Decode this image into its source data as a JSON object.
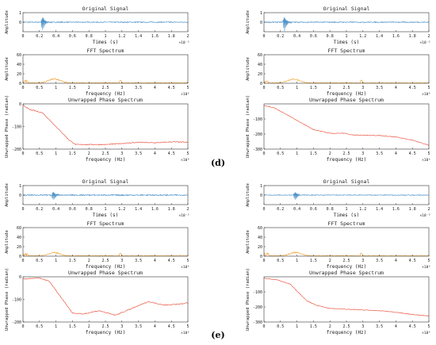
{
  "figure_labels": [
    "(d)",
    "(e)"
  ],
  "panel_common": {
    "signal_title": "Original Signal",
    "signal_ylabel": "Amplitude",
    "signal_xlabel": "Times (s)",
    "signal_xexp": "×10⁻³",
    "fft_title": "FFT Spectrum",
    "fft_ylabel": "Amplitude",
    "fft_xlabel": "frequency (Hz)",
    "fft_xexp": "×10⁶",
    "phase_title": "Unwrapped Phase Spectrum",
    "phase_ylabel": "Unwrapped Phase (radian)",
    "phase_xlabel": "frequency (Hz)",
    "phase_xexp": "×10⁶"
  },
  "colors": {
    "signal": "#4a90c8",
    "fft": "#f0a030",
    "phase": "#e8432e"
  },
  "chart_data": [
    {
      "panel": "d-left",
      "type": "line",
      "signal": {
        "title": "Original Signal",
        "xlabel": "Times (s)",
        "ylabel": "Amplitude",
        "xlim": [
          0,
          2
        ],
        "ylim": [
          -1,
          1
        ],
        "xticks": [
          0,
          0.2,
          0.4,
          0.6,
          0.8,
          1,
          1.2,
          1.4,
          1.6,
          1.8,
          2
        ],
        "yticks": [
          0,
          1
        ],
        "burst_center": 0.24,
        "burst_amplitude": 0.9,
        "noise": 0.05
      },
      "fft": {
        "title": "FFT Spectrum",
        "xlabel": "frequency (Hz)",
        "ylabel": "Amplitude",
        "xlim": [
          0,
          5
        ],
        "ylim": [
          0,
          60
        ],
        "yticks": [
          0,
          20,
          40,
          60
        ],
        "xticks": [
          0,
          0.5,
          1,
          1.5,
          2,
          2.5,
          3,
          3.5,
          4,
          4.5,
          5
        ],
        "peak_freq": 0.95,
        "peak_amp": 10
      },
      "phase": {
        "title": "Unwrapped Phase Spectrum",
        "xlabel": "frequency (Hz)",
        "ylabel": "Unwrapped Phase (radian)",
        "xlim": [
          0,
          5
        ],
        "ylim": [
          -200,
          0
        ],
        "yticks": [
          0,
          -100,
          -200
        ],
        "xticks": [
          0,
          0.5,
          1,
          1.5,
          2,
          2.5,
          3,
          3.5,
          4,
          4.5,
          5
        ],
        "x": [
          0,
          0.2,
          0.35,
          0.6,
          1.0,
          1.4,
          1.6,
          2.5,
          3.0,
          3.5,
          4.0,
          4.5,
          5.0
        ],
        "y": [
          -5,
          -25,
          -30,
          -40,
          -100,
          -160,
          -180,
          -180,
          -175,
          -170,
          -172,
          -168,
          -170
        ]
      }
    },
    {
      "panel": "d-right",
      "type": "line",
      "signal": {
        "title": "Original Signal",
        "xlabel": "Times (s)",
        "ylabel": "Amplitude",
        "xlim": [
          0,
          2
        ],
        "ylim": [
          -1,
          1
        ],
        "xticks": [
          0,
          0.2,
          0.4,
          0.6,
          0.8,
          1,
          1.2,
          1.4,
          1.6,
          1.8,
          2
        ],
        "yticks": [
          0,
          1
        ],
        "burst_center": 0.25,
        "burst_amplitude": 0.9,
        "noise": 0.05
      },
      "fft": {
        "title": "FFT Spectrum",
        "xlabel": "frequency (Hz)",
        "ylabel": "Amplitude",
        "xlim": [
          0,
          5
        ],
        "ylim": [
          0,
          60
        ],
        "yticks": [
          0,
          20,
          40,
          60
        ],
        "xticks": [
          0,
          0.5,
          1,
          1.5,
          2,
          2.5,
          3,
          3.5,
          4,
          4.5,
          5
        ],
        "peak_freq": 0.9,
        "peak_amp": 9
      },
      "phase": {
        "title": "Unwrapped Phase Spectrum",
        "xlabel": "frequency (Hz)",
        "ylabel": "Unwrapped Phase (radian)",
        "xlim": [
          0,
          5
        ],
        "ylim": [
          -300,
          0
        ],
        "yticks": [
          -100,
          -200,
          -300
        ],
        "x": [
          0,
          0.3,
          0.6,
          1.0,
          1.5,
          2.0,
          2.5,
          2.6,
          3.5,
          4.0,
          4.5,
          5.0
        ],
        "y": [
          -10,
          -25,
          -60,
          -110,
          -170,
          -195,
          -195,
          -205,
          -210,
          -220,
          -240,
          -275
        ],
        "xticks": [
          0,
          0.5,
          1,
          1.5,
          2,
          2.5,
          3,
          3.5,
          4,
          4.5,
          5
        ]
      }
    },
    {
      "panel": "e-left",
      "type": "line",
      "signal": {
        "title": "Original Signal",
        "xlabel": "Times (s)",
        "ylabel": "Amplitude",
        "xlim": [
          0,
          2
        ],
        "ylim": [
          -1,
          1
        ],
        "xticks": [
          0,
          0.2,
          0.4,
          0.6,
          0.8,
          1,
          1.2,
          1.4,
          1.6,
          1.8,
          2
        ],
        "yticks": [
          0,
          1
        ],
        "burst_center": 0.37,
        "burst_amplitude": 0.6,
        "noise": 0.06
      },
      "fft": {
        "title": "FFT Spectrum",
        "xlabel": "frequency (Hz)",
        "ylabel": "Amplitude",
        "xlim": [
          0,
          5
        ],
        "ylim": [
          0,
          60
        ],
        "yticks": [
          0,
          20,
          40,
          60
        ],
        "xticks": [
          0,
          0.5,
          1,
          1.5,
          2,
          2.5,
          3,
          3.5,
          4,
          4.5,
          5
        ],
        "peak_freq": 0.95,
        "peak_amp": 8
      },
      "phase": {
        "title": "Unwrapped Phase Spectrum",
        "xlabel": "frequency (Hz)",
        "ylabel": "Unwrapped Phase (radian)",
        "xlim": [
          0,
          5
        ],
        "ylim": [
          -200,
          0
        ],
        "yticks": [
          0,
          -100,
          -200
        ],
        "x": [
          0,
          0.5,
          0.8,
          1.5,
          1.8,
          2.3,
          2.8,
          3.3,
          3.8,
          4.3,
          4.8,
          5.0
        ],
        "y": [
          -10,
          -5,
          -20,
          -160,
          -165,
          -150,
          -170,
          -140,
          -110,
          -125,
          -120,
          -115
        ],
        "xticks": [
          0,
          0.5,
          1,
          1.5,
          2,
          2.5,
          3,
          3.5,
          4,
          4.5,
          5
        ]
      }
    },
    {
      "panel": "e-right",
      "type": "line",
      "signal": {
        "title": "Original Signal",
        "xlabel": "Times (s)",
        "ylabel": "Amplitude",
        "xlim": [
          0,
          2
        ],
        "ylim": [
          -1,
          1
        ],
        "xticks": [
          0,
          0.2,
          0.4,
          0.6,
          0.8,
          1,
          1.2,
          1.4,
          1.6,
          1.8,
          2
        ],
        "yticks": [
          0,
          1
        ],
        "burst_center": 0.38,
        "burst_amplitude": 0.6,
        "noise": 0.04
      },
      "fft": {
        "title": "FFT Spectrum",
        "xlabel": "frequency (Hz)",
        "ylabel": "Amplitude",
        "xlim": [
          0,
          5
        ],
        "ylim": [
          0,
          60
        ],
        "yticks": [
          0,
          20,
          40,
          60
        ],
        "xticks": [
          0,
          0.5,
          1,
          1.5,
          2,
          2.5,
          3,
          3.5,
          4,
          4.5,
          5
        ],
        "peak_freq": 0.95,
        "peak_amp": 8
      },
      "phase": {
        "title": "Unwrapped Phase Spectrum",
        "xlabel": "frequency (Hz)",
        "ylabel": "Unwrapped Phase (radian)",
        "xlim": [
          0,
          5
        ],
        "ylim": [
          -300,
          0
        ],
        "yticks": [
          -100,
          -200,
          -300
        ],
        "x": [
          0,
          0.4,
          0.8,
          1.3,
          1.6,
          2.0,
          2.5,
          3.0,
          3.5,
          4.0,
          4.5,
          5.0
        ],
        "y": [
          -10,
          -20,
          -50,
          -160,
          -190,
          -210,
          -215,
          -220,
          -225,
          -235,
          -250,
          -260
        ],
        "xticks": [
          0,
          0.5,
          1,
          1.5,
          2,
          2.5,
          3,
          3.5,
          4,
          4.5,
          5
        ]
      }
    }
  ]
}
